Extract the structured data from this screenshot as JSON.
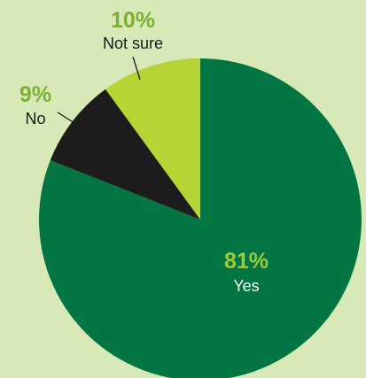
{
  "chart_data": {
    "type": "pie",
    "title": "",
    "slices": [
      {
        "label": "Yes",
        "value": 81,
        "value_label": "81%",
        "color": "#037543",
        "value_label_color": "#9fca3c",
        "label_color": "#ffffff"
      },
      {
        "label": "No",
        "value": 9,
        "value_label": "9%",
        "color": "#1c1c1c",
        "value_label_color": "#7bb030",
        "label_color": "#1a1a1a"
      },
      {
        "label": "Not sure",
        "value": 10,
        "value_label": "10%",
        "color": "#b6d433",
        "value_label_color": "#7bb030",
        "label_color": "#1a1a1a"
      }
    ],
    "start_angle": "12 o'clock",
    "direction": "clockwise",
    "legend": "none"
  },
  "colors": {
    "background": "#d7e9b6",
    "leader_line": "#1a1a1a"
  }
}
